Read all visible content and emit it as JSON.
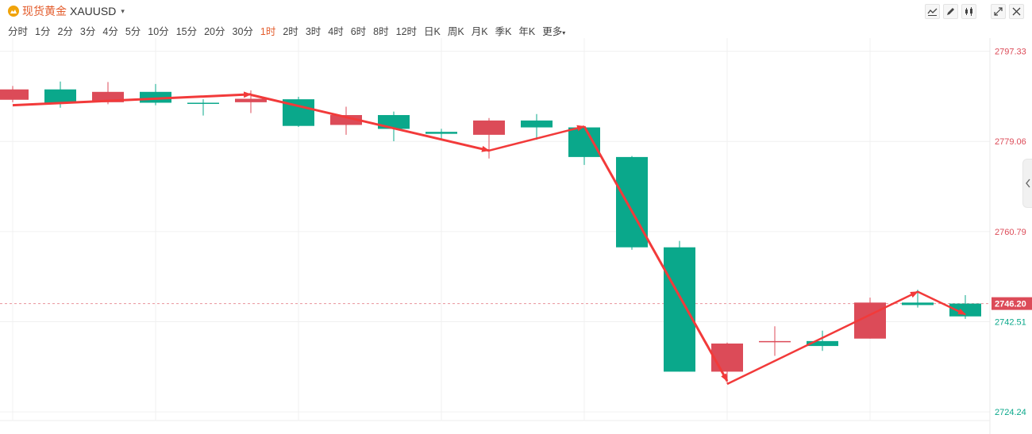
{
  "header": {
    "symbol_name": "现货黄金",
    "symbol_code": "XAUUSD",
    "caret": "▾"
  },
  "toolbar": {
    "icons": [
      "line-tool-icon",
      "pen-tool-icon",
      "candle-tool-icon",
      "expand-icon",
      "close-icon"
    ]
  },
  "periods": [
    "分时",
    "1分",
    "2分",
    "3分",
    "4分",
    "5分",
    "10分",
    "15分",
    "20分",
    "30分",
    "1时",
    "2时",
    "3时",
    "4时",
    "6时",
    "8时",
    "12时",
    "日K",
    "周K",
    "月K",
    "季K",
    "年K",
    "更多"
  ],
  "active_period": "1时",
  "colors": {
    "up": "#dc4b58",
    "down": "#0aa88b",
    "grid": "#f0f0f0",
    "arrow": "#f23a3a",
    "current_price": "#dc4b58"
  },
  "chart_data": {
    "type": "candlestick",
    "ylim": [
      2722.5,
      2800
    ],
    "y_ticks": [
      {
        "value": 2797.33,
        "label": "2797.33",
        "color": "#dc4b58"
      },
      {
        "value": 2779.06,
        "label": "2779.06",
        "color": "#dc4b58"
      },
      {
        "value": 2760.79,
        "label": "2760.79",
        "color": "#dc4b58"
      },
      {
        "value": 2742.51,
        "label": "2742.51",
        "color": "#0aa88b"
      },
      {
        "value": 2724.24,
        "label": "2724.24",
        "color": "#0aa88b"
      }
    ],
    "current_price": {
      "value": 2746.2,
      "label": "2746.20"
    },
    "candles": [
      {
        "open": 2787.5,
        "close": 2789.6,
        "high": 2790.3,
        "low": 2787.0
      },
      {
        "open": 2789.6,
        "close": 2786.9,
        "high": 2791.2,
        "low": 2785.9
      },
      {
        "open": 2787.0,
        "close": 2789.1,
        "high": 2791.1,
        "low": 2786.6
      },
      {
        "open": 2789.1,
        "close": 2786.9,
        "high": 2790.7,
        "low": 2786.4
      },
      {
        "open": 2786.9,
        "close": 2786.7,
        "high": 2787.6,
        "low": 2784.3
      },
      {
        "open": 2787.0,
        "close": 2787.7,
        "high": 2789.4,
        "low": 2784.8
      },
      {
        "open": 2787.6,
        "close": 2782.2,
        "high": 2788.1,
        "low": 2782.0
      },
      {
        "open": 2782.4,
        "close": 2784.4,
        "high": 2786.1,
        "low": 2780.4
      },
      {
        "open": 2784.4,
        "close": 2781.6,
        "high": 2785.1,
        "low": 2779.1
      },
      {
        "open": 2781.0,
        "close": 2780.6,
        "high": 2781.6,
        "low": 2779.4
      },
      {
        "open": 2780.4,
        "close": 2783.3,
        "high": 2783.8,
        "low": 2775.6
      },
      {
        "open": 2783.3,
        "close": 2781.9,
        "high": 2784.6,
        "low": 2779.4
      },
      {
        "open": 2781.9,
        "close": 2775.9,
        "high": 2782.1,
        "low": 2774.3
      },
      {
        "open": 2775.9,
        "close": 2757.6,
        "high": 2776.1,
        "low": 2757.1
      },
      {
        "open": 2757.6,
        "close": 2732.4,
        "high": 2758.9,
        "low": 2732.4
      },
      {
        "open": 2732.4,
        "close": 2738.1,
        "high": 2738.3,
        "low": 2729.9
      },
      {
        "open": 2738.6,
        "close": 2738.6,
        "high": 2741.6,
        "low": 2735.6
      },
      {
        "open": 2738.6,
        "close": 2737.6,
        "high": 2740.7,
        "low": 2736.6
      },
      {
        "open": 2739.1,
        "close": 2746.4,
        "high": 2747.4,
        "low": 2739.1
      },
      {
        "open": 2746.4,
        "close": 2745.9,
        "high": 2749.0,
        "low": 2745.4
      },
      {
        "open": 2746.2,
        "close": 2743.6,
        "high": 2747.9,
        "low": 2743.1
      }
    ]
  }
}
